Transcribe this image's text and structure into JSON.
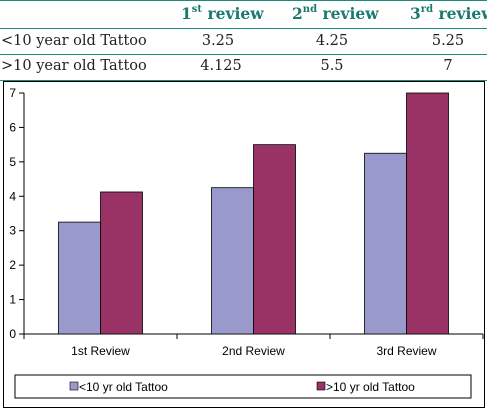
{
  "table": {
    "headers": [
      {
        "label": "1",
        "sup": "st",
        "rest": " review"
      },
      {
        "label": "2",
        "sup": "nd",
        "rest": " review"
      },
      {
        "label": "3",
        "sup": "rd",
        "rest": " review"
      }
    ],
    "rows": [
      {
        "label": "<10 year old Tattoo",
        "values": [
          "3.25",
          "4.25",
          "5.25"
        ]
      },
      {
        "label": ">10 year old Tattoo",
        "values": [
          "4.125",
          "5.5",
          "7"
        ]
      }
    ],
    "rule_color": "#1d8a7b",
    "header_color": "#1a7a6d"
  },
  "chart_data": {
    "type": "bar",
    "categories": [
      "1st Review",
      "2nd Review",
      "3rd Review"
    ],
    "series": [
      {
        "name": "<10 yr old Tattoo",
        "values": [
          3.25,
          4.25,
          5.25
        ],
        "color": "#9999cc"
      },
      {
        "name": ">10 yr old Tattoo",
        "values": [
          4.125,
          5.5,
          7
        ],
        "color": "#993366"
      }
    ],
    "ylim": [
      0,
      7
    ],
    "yticks": [
      0,
      1,
      2,
      3,
      4,
      5,
      6,
      7
    ],
    "grid": false,
    "legend": "bottom"
  }
}
